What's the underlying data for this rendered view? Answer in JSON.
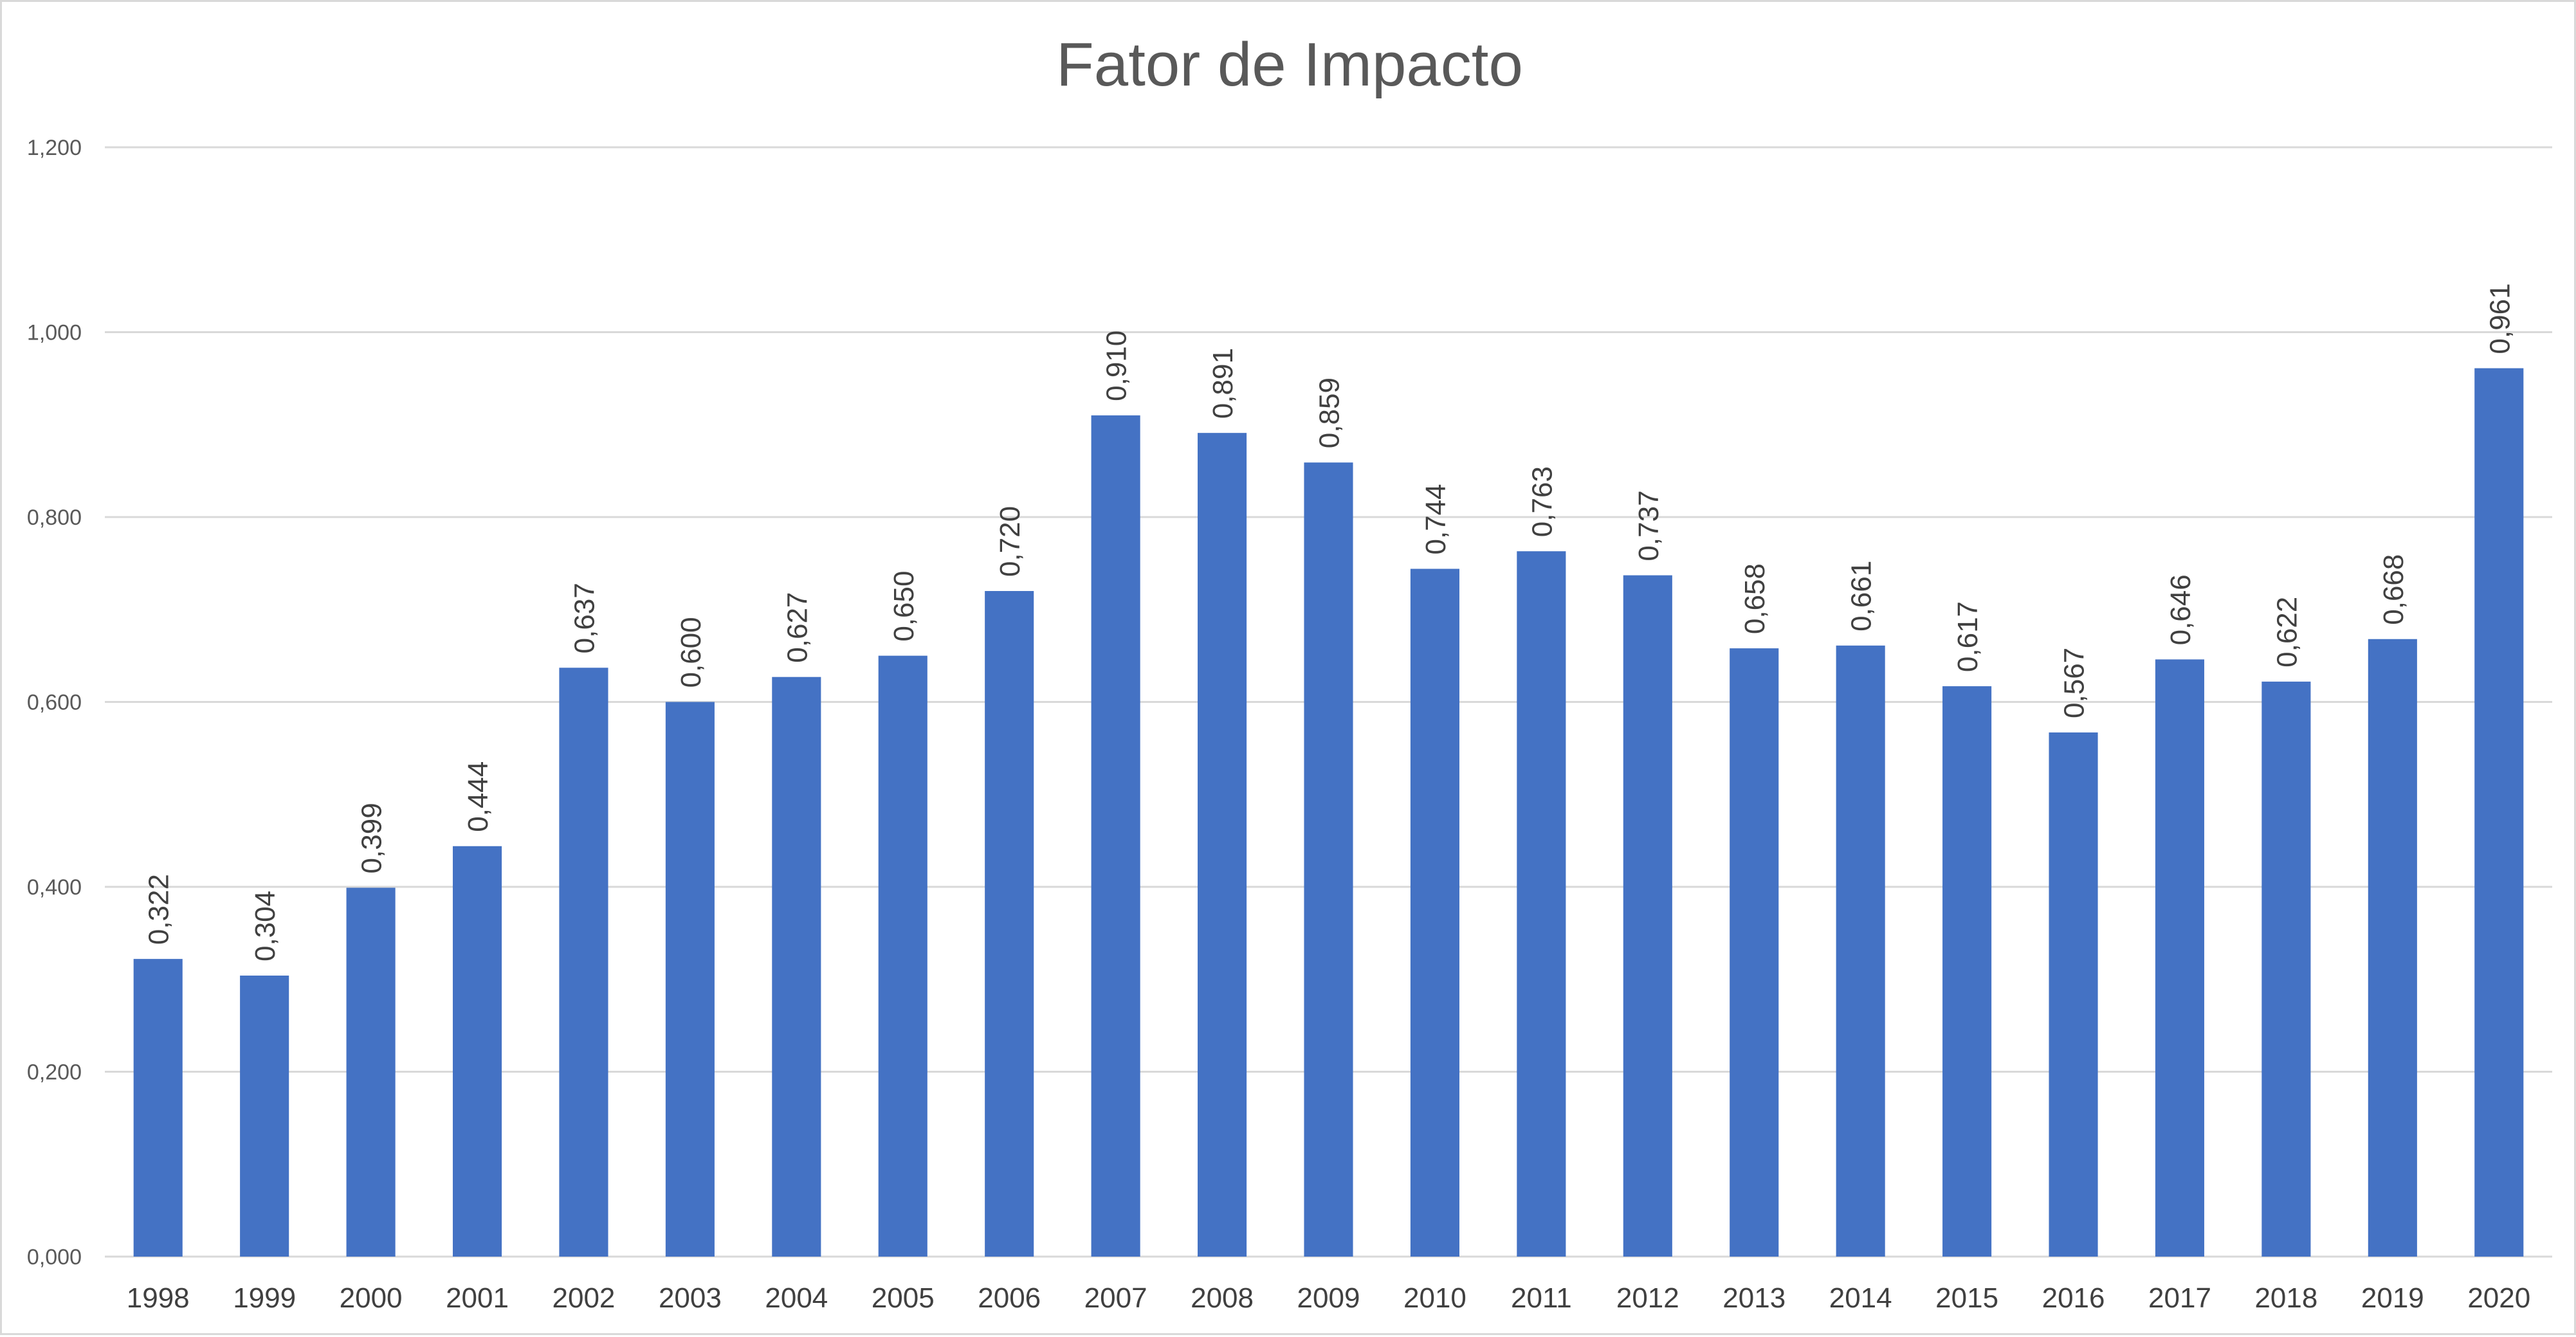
{
  "chart_data": {
    "type": "bar",
    "title": "Fator de Impacto",
    "xlabel": "",
    "ylabel": "",
    "categories": [
      "1998",
      "1999",
      "2000",
      "2001",
      "2002",
      "2003",
      "2004",
      "2005",
      "2006",
      "2007",
      "2008",
      "2009",
      "2010",
      "2011",
      "2012",
      "2013",
      "2014",
      "2015",
      "2016",
      "2017",
      "2018",
      "2019",
      "2020"
    ],
    "values": [
      0.322,
      0.304,
      0.399,
      0.444,
      0.637,
      0.6,
      0.627,
      0.65,
      0.72,
      0.91,
      0.891,
      0.859,
      0.744,
      0.763,
      0.737,
      0.658,
      0.661,
      0.617,
      0.567,
      0.646,
      0.622,
      0.668,
      0.961
    ],
    "data_labels": [
      "0,322",
      "0,304",
      "0,399",
      "0,444",
      "0,637",
      "0,600",
      "0,627",
      "0,650",
      "0,720",
      "0,910",
      "0,891",
      "0,859",
      "0,744",
      "0,763",
      "0,737",
      "0,658",
      "0,661",
      "0,617",
      "0,567",
      "0,646",
      "0,622",
      "0,668",
      "0,961"
    ],
    "ylim": [
      0,
      1.2
    ],
    "y_ticks": [
      0,
      0.2,
      0.4,
      0.6,
      0.8,
      1.0,
      1.2
    ],
    "y_tick_labels": [
      "0,000",
      "0,200",
      "0,400",
      "0,600",
      "0,800",
      "1,000",
      "1,200"
    ],
    "grid": true,
    "legend": "none",
    "bar_color": "#4472C4",
    "grid_color": "#d9d9d9"
  }
}
